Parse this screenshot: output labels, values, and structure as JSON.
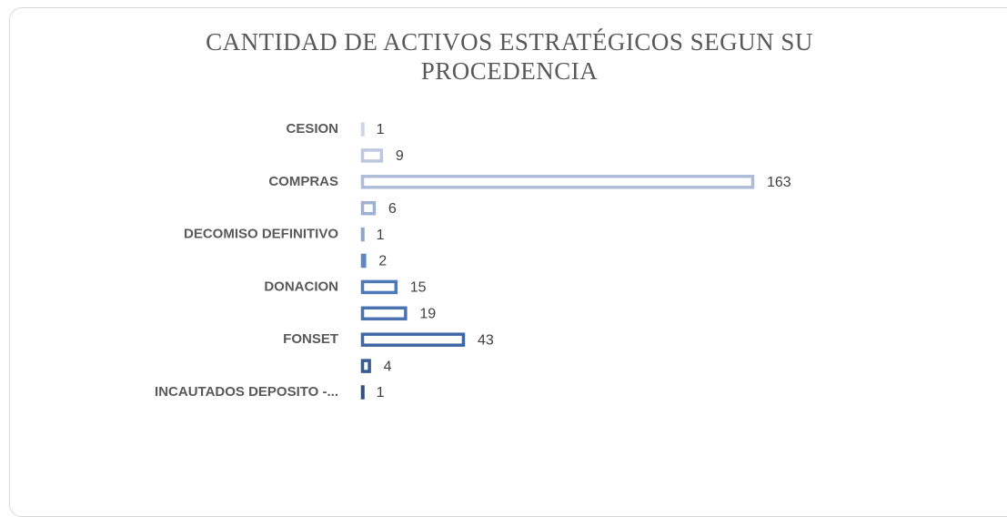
{
  "chart_data": {
    "type": "bar",
    "orientation": "horizontal",
    "title": "CANTIDAD DE ACTIVOS ESTRATÉGICOS SEGUN SU PROCEDENCIA",
    "categories": [
      "CESION",
      null,
      "COMPRAS",
      null,
      "DECOMISO DEFINITIVO",
      null,
      "DONACION",
      null,
      "FONSET",
      null,
      "INCAUTADOS DEPOSITO -..."
    ],
    "values": [
      1,
      9,
      163,
      6,
      1,
      2,
      15,
      19,
      43,
      4,
      1
    ],
    "colors": [
      "#cdd5e6",
      "#bcc8e0",
      "#aebcd9",
      "#9fb1d3",
      "#8ea5cc",
      "#5f86c2",
      "#4f78b9",
      "#4a72b0",
      "#3f67a3",
      "#355c93",
      "#2f5080"
    ]
  }
}
